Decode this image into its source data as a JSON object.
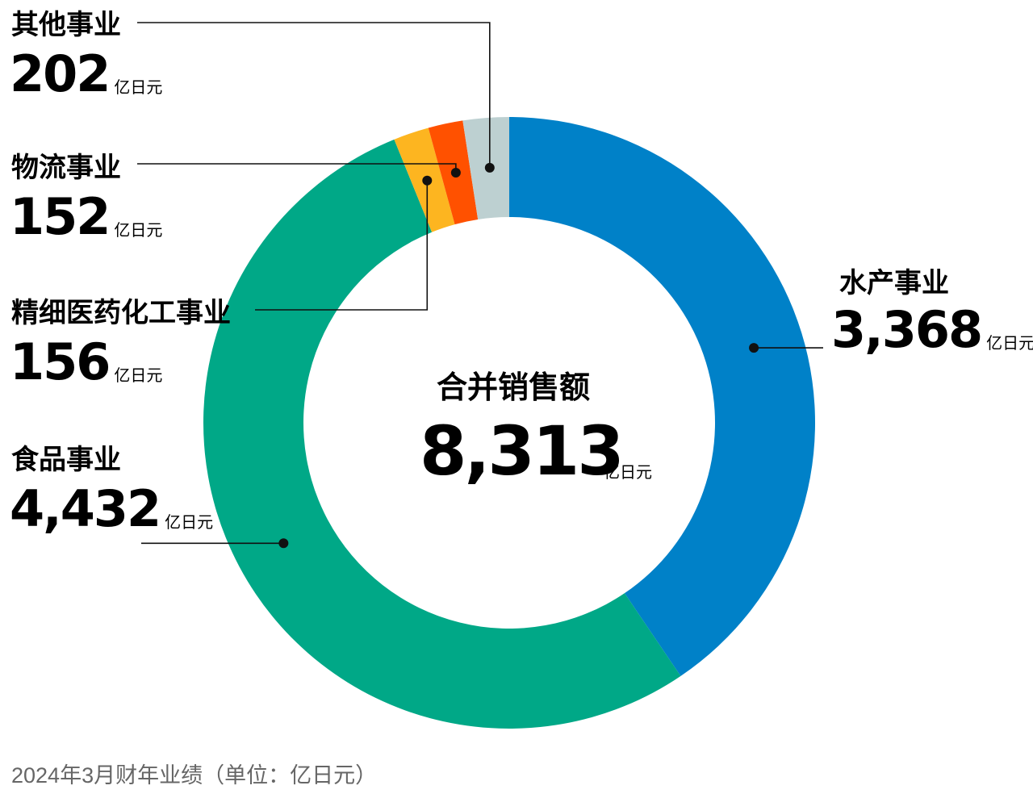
{
  "chart_data": {
    "type": "pie",
    "variant": "donut",
    "categories": [
      "水产事业",
      "食品事业",
      "精细医药化工事业",
      "物流事业",
      "其他事业"
    ],
    "values": [
      3368,
      4432,
      156,
      152,
      202
    ],
    "value_labels": [
      "3,368",
      "4,432",
      "156",
      "152",
      "202"
    ],
    "unit": "亿日元",
    "colors": [
      "#0081C8",
      "#00A887",
      "#FDB520",
      "#FF5100",
      "#BDD0D1"
    ],
    "total_label": "合并销售额",
    "total_value": "8,313",
    "total_unit": "亿日元",
    "footnote": "2024年3月财年业绩（单位：亿日元）"
  }
}
